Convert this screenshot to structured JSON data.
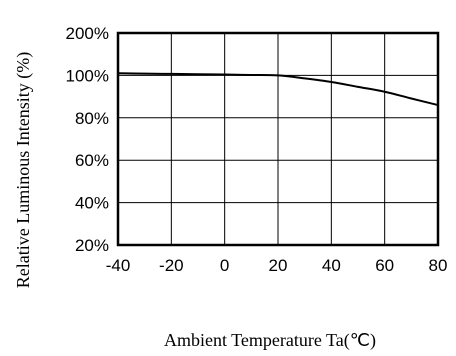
{
  "chart_data": {
    "type": "line",
    "xlabel": "Ambient  Temperature Ta(℃)",
    "ylabel": "Relative  Luminous  Intensity (%)",
    "xlim": [
      -40,
      80
    ],
    "ylim": [
      20,
      200
    ],
    "x_ticks": [
      -40,
      -20,
      0,
      20,
      40,
      60,
      80
    ],
    "y_ticks": [
      20,
      40,
      60,
      80,
      100,
      200
    ],
    "y_tick_labels": [
      "20%",
      "40%",
      "60%",
      "80%",
      "100%",
      "200%"
    ],
    "grid": true,
    "series": [
      {
        "x": [
          -40,
          -30,
          -20,
          -10,
          0,
          10,
          20,
          30,
          40,
          50,
          60,
          70,
          80
        ],
        "y": [
          105,
          104.2,
          103.5,
          102.8,
          102,
          101,
          100,
          98.6,
          96.9,
          94.6,
          92.3,
          89.1,
          86
        ]
      }
    ]
  }
}
